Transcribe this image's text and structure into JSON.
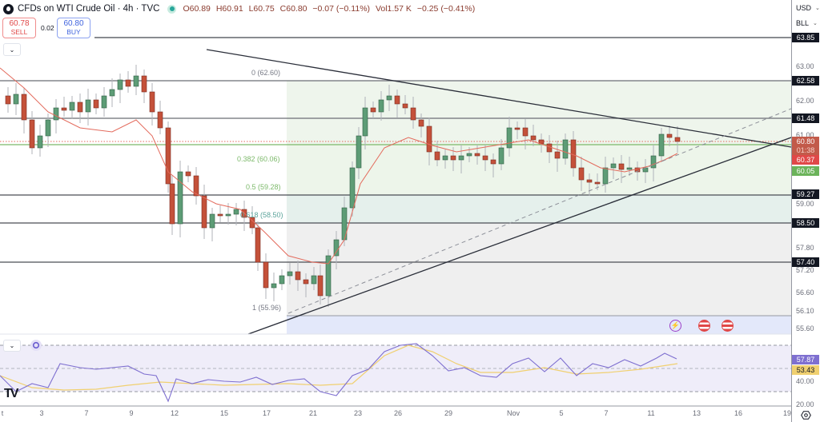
{
  "header": {
    "symbol_title": "CFDs on WTI Crude Oil · 4h · TVC",
    "ohlc": {
      "open": "O60.89",
      "high": "H60.91",
      "low": "L60.75",
      "close": "C60.80",
      "change": "−0.07 (−0.11%)",
      "volume": "Vol1.57 K",
      "vol_change": "−0.25 (−0.41%)"
    }
  },
  "trade": {
    "sell_price": "60.78",
    "sell_label": "SELL",
    "spread": "0.02",
    "buy_price": "60.80",
    "buy_label": "BUY"
  },
  "axis": {
    "currency": "USD",
    "unit": "BLL",
    "settings_icon": "gear-icon"
  },
  "price_ticks": [
    "63.00",
    "62.00",
    "61.00",
    "59.00",
    "57.80",
    "57.20",
    "56.60",
    "56.10",
    "55.60"
  ],
  "price_tags": {
    "h_63_85": "63.85",
    "h_62_58": "62.58",
    "h_61_48": "61.48",
    "last_price": "60.80",
    "countdown": "01:38",
    "ma_value": "60.37",
    "h_60_05": "60.05",
    "h_59_27": "59.27",
    "h_58_50": "58.50",
    "h_57_40": "57.40"
  },
  "fib_labels": {
    "f0": "0 (62.60)",
    "f382": "0.382 (60.06)",
    "f5": "0.5 (59.28)",
    "f618": "0.618 (58.50)",
    "f1": "1 (55.96)"
  },
  "rsi": {
    "ticks": [
      "40.00",
      "20.00"
    ],
    "rsi_value": "57.87",
    "ma_value": "53.43"
  },
  "time_ticks": [
    "t",
    "3",
    "7",
    "9",
    "12",
    "15",
    "17",
    "21",
    "23",
    "26",
    "29",
    "Nov",
    "5",
    "7",
    "11",
    "13",
    "16",
    "19"
  ],
  "colors": {
    "up": "#5d9c76",
    "down": "#c4513a",
    "ma": "#e36a5c",
    "rsi": "#7e6fd0",
    "rsi_ma": "#f0d070",
    "fib_green": "#7cb96a",
    "sell": "#e04848",
    "buy": "#3f63de"
  },
  "chart_data": {
    "type": "candlestick",
    "title": "CFDs on WTI Crude Oil · 4h · TVC",
    "xlabel": "",
    "ylabel": "USD / BLL",
    "ylim": [
      55.4,
      64.2
    ],
    "x_ticks": [
      "3",
      "7",
      "9",
      "12",
      "15",
      "17",
      "21",
      "23",
      "26",
      "29",
      "Nov",
      "5",
      "7",
      "11",
      "13",
      "16",
      "19"
    ],
    "last": {
      "open": 60.89,
      "high": 60.91,
      "low": 60.75,
      "close": 60.8,
      "change": -0.07,
      "change_pct": -0.11
    },
    "horizontal_levels": [
      63.85,
      62.58,
      61.48,
      60.05,
      59.27,
      58.5,
      57.4
    ],
    "fibonacci": [
      {
        "level": 0,
        "price": 62.6
      },
      {
        "level": 0.382,
        "price": 60.06
      },
      {
        "level": 0.5,
        "price": 59.28
      },
      {
        "level": 0.618,
        "price": 58.5
      },
      {
        "level": 1,
        "price": 55.96
      }
    ],
    "moving_average_last": 60.37,
    "trendlines": [
      {
        "name": "descending resistance",
        "from": [
          258,
          62
        ],
        "to": [
          988,
          184
        ]
      },
      {
        "name": "ascending support",
        "from": [
          310,
          418
        ],
        "to": [
          988,
          172
        ]
      },
      {
        "name": "ascending dashed channel",
        "from": [
          360,
          392
        ],
        "to": [
          988,
          136
        ]
      }
    ],
    "rsi": {
      "value": 57.87,
      "ma": 53.43,
      "bands": [
        70,
        50,
        30
      ],
      "ticks": [
        40,
        20
      ]
    }
  }
}
